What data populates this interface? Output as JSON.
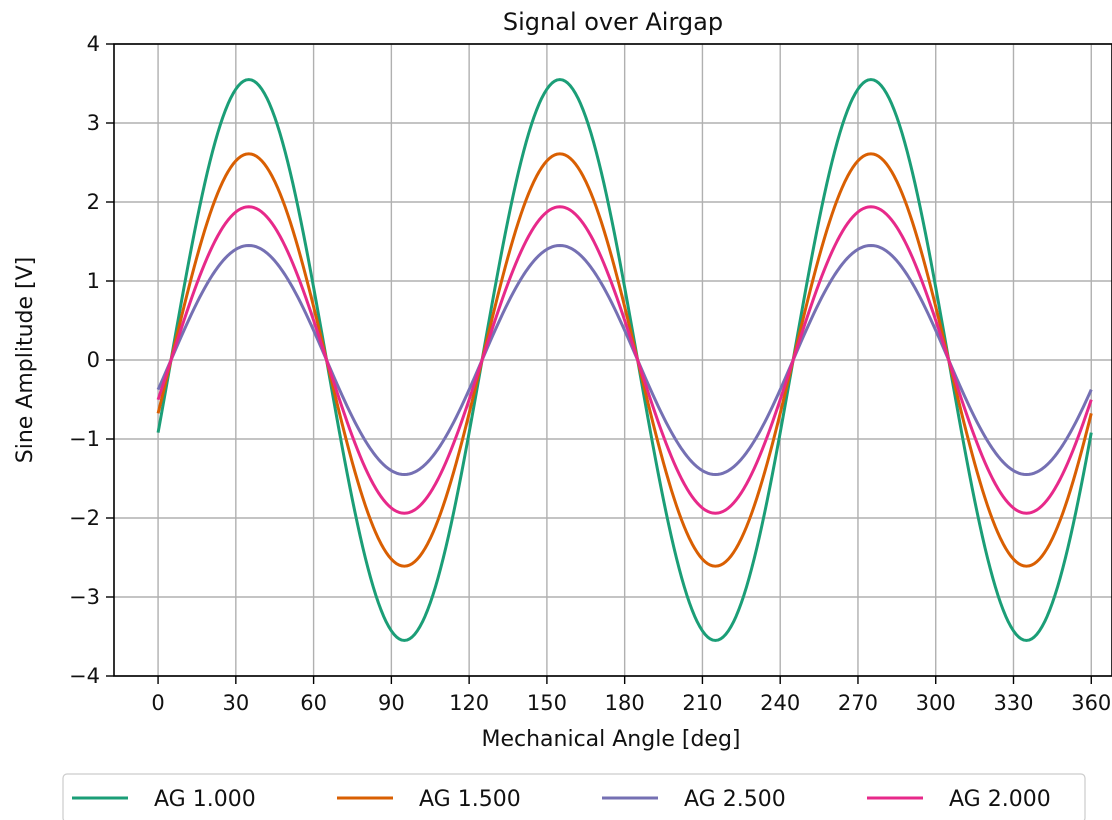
{
  "chart_data": {
    "type": "line",
    "title": "Signal over Airgap",
    "xlabel": "Mechanical Angle [deg]",
    "ylabel": "Sine Amplitude [V]",
    "xlim": [
      -17,
      368
    ],
    "ylim": [
      -4,
      4
    ],
    "xticks": [
      0,
      30,
      60,
      90,
      120,
      150,
      180,
      210,
      240,
      270,
      300,
      330,
      360
    ],
    "xtick_labels": [
      "0",
      "30",
      "60",
      "90",
      "120",
      "150",
      "180",
      "210",
      "240",
      "270",
      "300",
      "330",
      "360"
    ],
    "yticks": [
      -4,
      -3,
      -2,
      -1,
      0,
      1,
      2,
      3,
      4
    ],
    "ytick_labels": [
      "−4",
      "−3",
      "−2",
      "−1",
      "0",
      "1",
      "2",
      "3",
      "4"
    ],
    "grid": true,
    "legend_placement": "below",
    "periodicity_deg": 120,
    "phase_peak_deg": 35,
    "series": [
      {
        "name": "AG 1.000",
        "color": "#1b9e77",
        "amplitude": 3.55
      },
      {
        "name": "AG 1.500",
        "color": "#d95f02",
        "amplitude": 2.61
      },
      {
        "name": "AG 2.500",
        "color": "#7570b3",
        "amplitude": 1.45
      },
      {
        "name": "AG 2.000",
        "color": "#e7298a",
        "amplitude": 1.94
      }
    ]
  }
}
